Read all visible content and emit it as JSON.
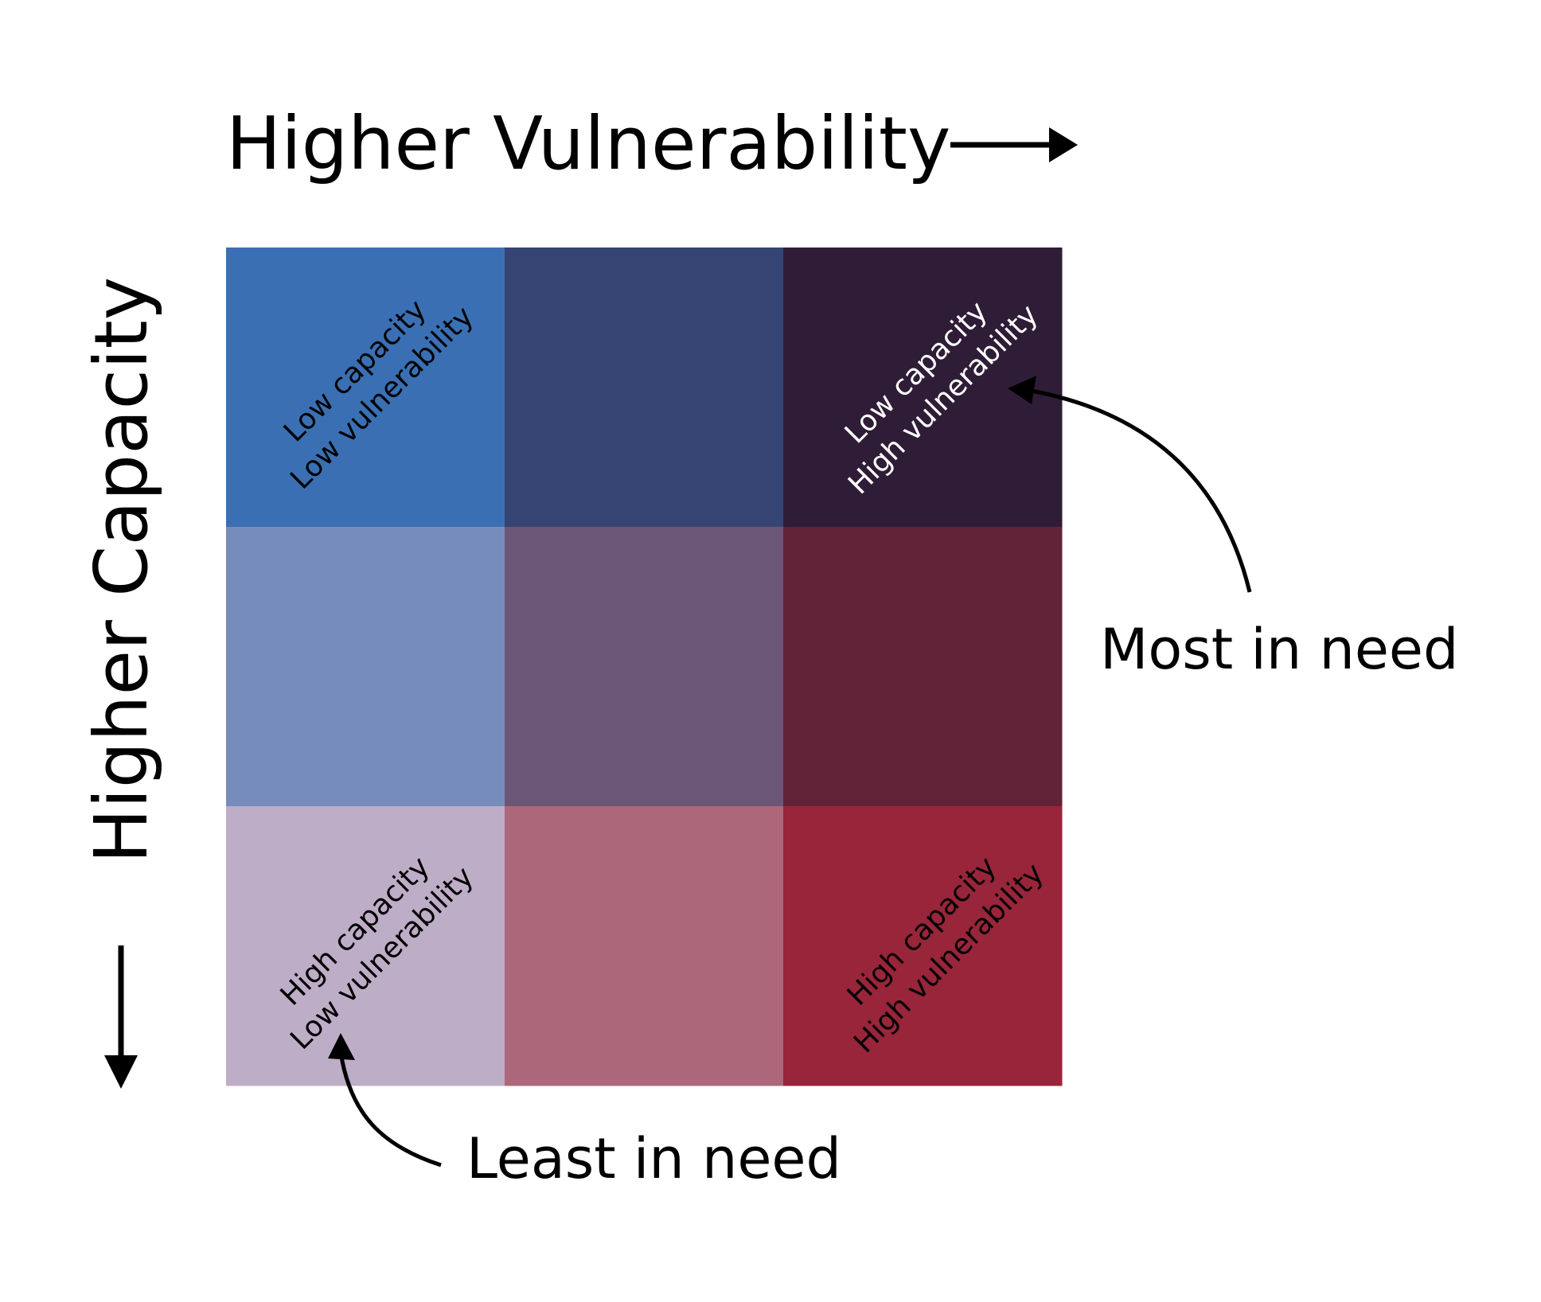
{
  "axes": {
    "x_label": "Higher Vulnerability",
    "y_label": "Higher Capacity"
  },
  "grid": {
    "rows": 3,
    "cols": 3,
    "cells": [
      [
        "#3a70b3",
        "#364473",
        "#2f1d37"
      ],
      [
        "#768dbb",
        "#6c5676",
        "#622339"
      ],
      [
        "#beadc6",
        "#ac677b",
        "#99253b"
      ]
    ]
  },
  "corner_labels": {
    "top_left": {
      "line1": "Low capacity",
      "line2": "Low vulnerability",
      "color": "#000000"
    },
    "top_right": {
      "line1": "Low capacity",
      "line2": "High vulnerability",
      "color": "#ffffff"
    },
    "bottom_left": {
      "line1": "High capacity",
      "line2": "Low vulnerability",
      "color": "#000000"
    },
    "bottom_right": {
      "line1": "High capacity",
      "line2": "High vulnerability",
      "color": "#000000"
    }
  },
  "annotations": {
    "most_in_need": "Most in need",
    "least_in_need": "Least in need"
  },
  "colors": {
    "ink": "#000000",
    "background": "#ffffff"
  }
}
